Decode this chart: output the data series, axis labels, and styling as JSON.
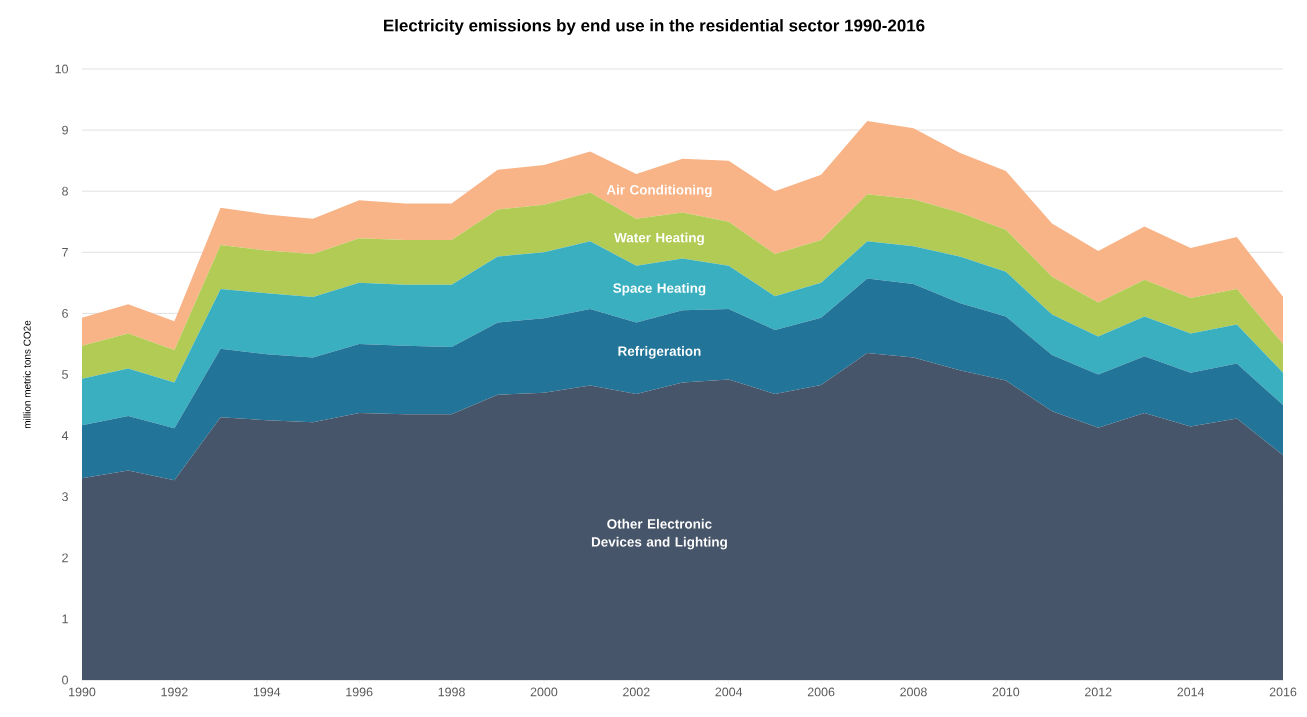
{
  "chart_data": {
    "type": "area",
    "stacked": true,
    "title": "Electricity emissions by end use in the residential sector 1990-2016",
    "ylabel": "million metric tons CO2e",
    "x": [
      1990,
      1991,
      1992,
      1993,
      1994,
      1995,
      1996,
      1997,
      1998,
      1999,
      2000,
      2001,
      2002,
      2003,
      2004,
      2005,
      2006,
      2007,
      2008,
      2009,
      2010,
      2011,
      2012,
      2013,
      2014,
      2015,
      2016
    ],
    "series": [
      {
        "name": "Other Electronic Devices and Lighting",
        "color": "#465569",
        "values": [
          3.3,
          3.43,
          3.27,
          4.3,
          4.25,
          4.22,
          4.37,
          4.35,
          4.35,
          4.67,
          4.7,
          4.82,
          4.68,
          4.87,
          4.92,
          4.68,
          4.83,
          5.35,
          5.28,
          5.07,
          4.9,
          4.4,
          4.13,
          4.37,
          4.15,
          4.28,
          3.68
        ]
      },
      {
        "name": "Refrigeration",
        "color": "#227599",
        "values": [
          0.87,
          0.89,
          0.85,
          1.12,
          1.08,
          1.06,
          1.13,
          1.12,
          1.1,
          1.18,
          1.22,
          1.25,
          1.17,
          1.18,
          1.15,
          1.05,
          1.1,
          1.22,
          1.2,
          1.1,
          1.05,
          0.92,
          0.87,
          0.93,
          0.88,
          0.9,
          0.82
        ]
      },
      {
        "name": "Space Heating",
        "color": "#3aafbf",
        "values": [
          0.76,
          0.78,
          0.75,
          0.98,
          1.0,
          0.99,
          1.0,
          1.0,
          1.02,
          1.08,
          1.08,
          1.11,
          0.93,
          0.85,
          0.71,
          0.55,
          0.57,
          0.61,
          0.62,
          0.76,
          0.73,
          0.66,
          0.62,
          0.65,
          0.64,
          0.64,
          0.53
        ]
      },
      {
        "name": "Water Heating",
        "color": "#b1cb55",
        "values": [
          0.54,
          0.57,
          0.53,
          0.72,
          0.7,
          0.7,
          0.73,
          0.73,
          0.73,
          0.77,
          0.78,
          0.8,
          0.77,
          0.75,
          0.72,
          0.69,
          0.7,
          0.77,
          0.77,
          0.72,
          0.69,
          0.62,
          0.56,
          0.6,
          0.58,
          0.58,
          0.47
        ]
      },
      {
        "name": "Air Conditioning",
        "color": "#f8b386",
        "values": [
          0.46,
          0.48,
          0.47,
          0.61,
          0.59,
          0.58,
          0.62,
          0.6,
          0.6,
          0.65,
          0.65,
          0.67,
          0.73,
          0.88,
          1.0,
          1.03,
          1.07,
          1.2,
          1.16,
          0.98,
          0.96,
          0.87,
          0.84,
          0.87,
          0.82,
          0.85,
          0.77
        ]
      }
    ],
    "xlim": [
      1990,
      2016
    ],
    "xticks": [
      1990,
      1992,
      1994,
      1996,
      1998,
      2000,
      2002,
      2004,
      2006,
      2008,
      2010,
      2012,
      2014,
      2016
    ],
    "ylim": [
      0,
      10
    ],
    "yticks": [
      0,
      1,
      2,
      3,
      4,
      5,
      6,
      7,
      8,
      9,
      10
    ],
    "grid": "y",
    "legend": false
  }
}
